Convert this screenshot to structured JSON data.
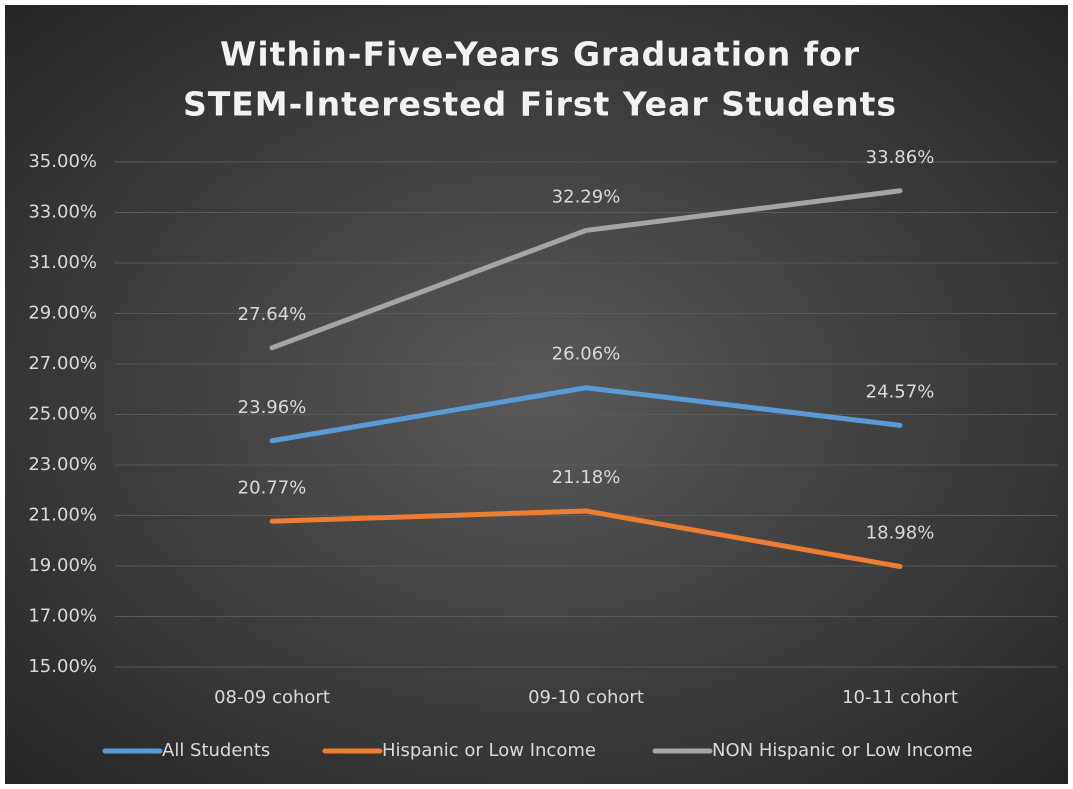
{
  "chart_data": {
    "type": "line",
    "title": [
      "Within-Five-Years Graduation for",
      "STEM-Interested First Year Students"
    ],
    "categories": [
      "08-09 cohort",
      "09-10 cohort",
      "10-11 cohort"
    ],
    "series": [
      {
        "name": "All Students",
        "color": "#5b9bd5",
        "values": [
          23.96,
          26.06,
          24.57
        ],
        "value_labels": [
          "23.96%",
          "26.06%",
          "24.57%"
        ]
      },
      {
        "name": "Hispanic or Low Income",
        "color": "#ed7d31",
        "values": [
          20.77,
          21.18,
          18.98
        ],
        "value_labels": [
          "20.77%",
          "21.18%",
          "18.98%"
        ]
      },
      {
        "name": "NON Hispanic or Low Income",
        "color": "#a5a5a5",
        "values": [
          27.64,
          32.29,
          33.86
        ],
        "value_labels": [
          "27.64%",
          "32.29%",
          "33.86%"
        ]
      }
    ],
    "ylim": [
      15,
      35
    ],
    "yticks": [
      {
        "value": 15,
        "label": "15.00%"
      },
      {
        "value": 17,
        "label": "17.00%"
      },
      {
        "value": 19,
        "label": "19.00%"
      },
      {
        "value": 21,
        "label": "21.00%"
      },
      {
        "value": 23,
        "label": "23.00%"
      },
      {
        "value": 25,
        "label": "25.00%"
      },
      {
        "value": 27,
        "label": "27.00%"
      },
      {
        "value": 29,
        "label": "29.00%"
      },
      {
        "value": 31,
        "label": "31.00%"
      },
      {
        "value": 33,
        "label": "33.00%"
      },
      {
        "value": 35,
        "label": "35.00%"
      }
    ],
    "grid": true,
    "legend": "bottom"
  }
}
